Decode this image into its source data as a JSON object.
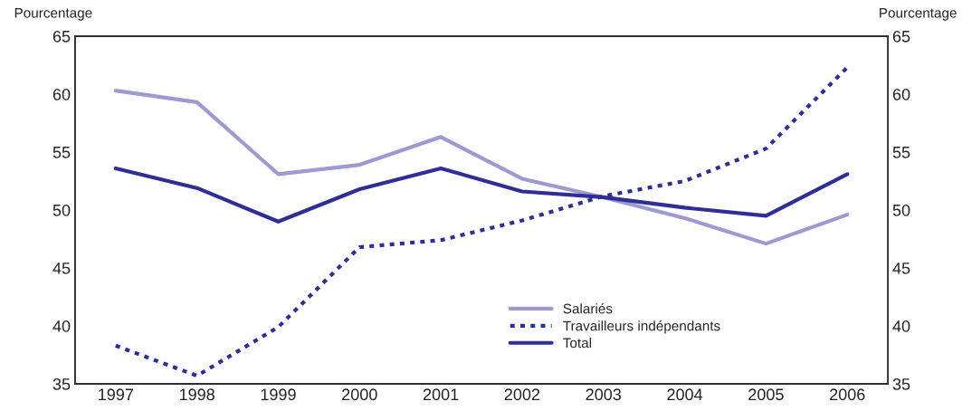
{
  "chart_data": {
    "type": "line",
    "ylabel": "Pourcentage",
    "y2label": "Pourcentage",
    "categories": [
      "1997",
      "1998",
      "1999",
      "2000",
      "2001",
      "2002",
      "2003",
      "2004",
      "2005",
      "2006"
    ],
    "series": [
      {
        "name": "Salariés",
        "color": "#9e99d0",
        "line_style": "solid",
        "values": [
          60.3,
          59.3,
          53.1,
          53.9,
          56.3,
          52.7,
          51.1,
          49.3,
          47.1,
          49.6
        ]
      },
      {
        "name": "Travailleurs indépendants",
        "color": "#2e2e96",
        "line_style": "dotted",
        "values": [
          38.3,
          35.7,
          39.9,
          46.8,
          47.4,
          49.1,
          51.2,
          52.5,
          55.3,
          62.3
        ]
      },
      {
        "name": "Total",
        "color": "#2e2e96",
        "line_style": "solid",
        "values": [
          53.6,
          51.9,
          49.0,
          51.8,
          53.6,
          51.6,
          51.1,
          50.2,
          49.5,
          53.1
        ]
      }
    ],
    "ylim": [
      35,
      65
    ],
    "yticks": [
      35,
      40,
      45,
      50,
      55,
      60,
      65
    ],
    "y2lim": [
      35,
      65
    ],
    "y2ticks": [
      35,
      40,
      45,
      50,
      55,
      60,
      65
    ],
    "grid": false,
    "legend": "bottom",
    "marker": "none"
  }
}
